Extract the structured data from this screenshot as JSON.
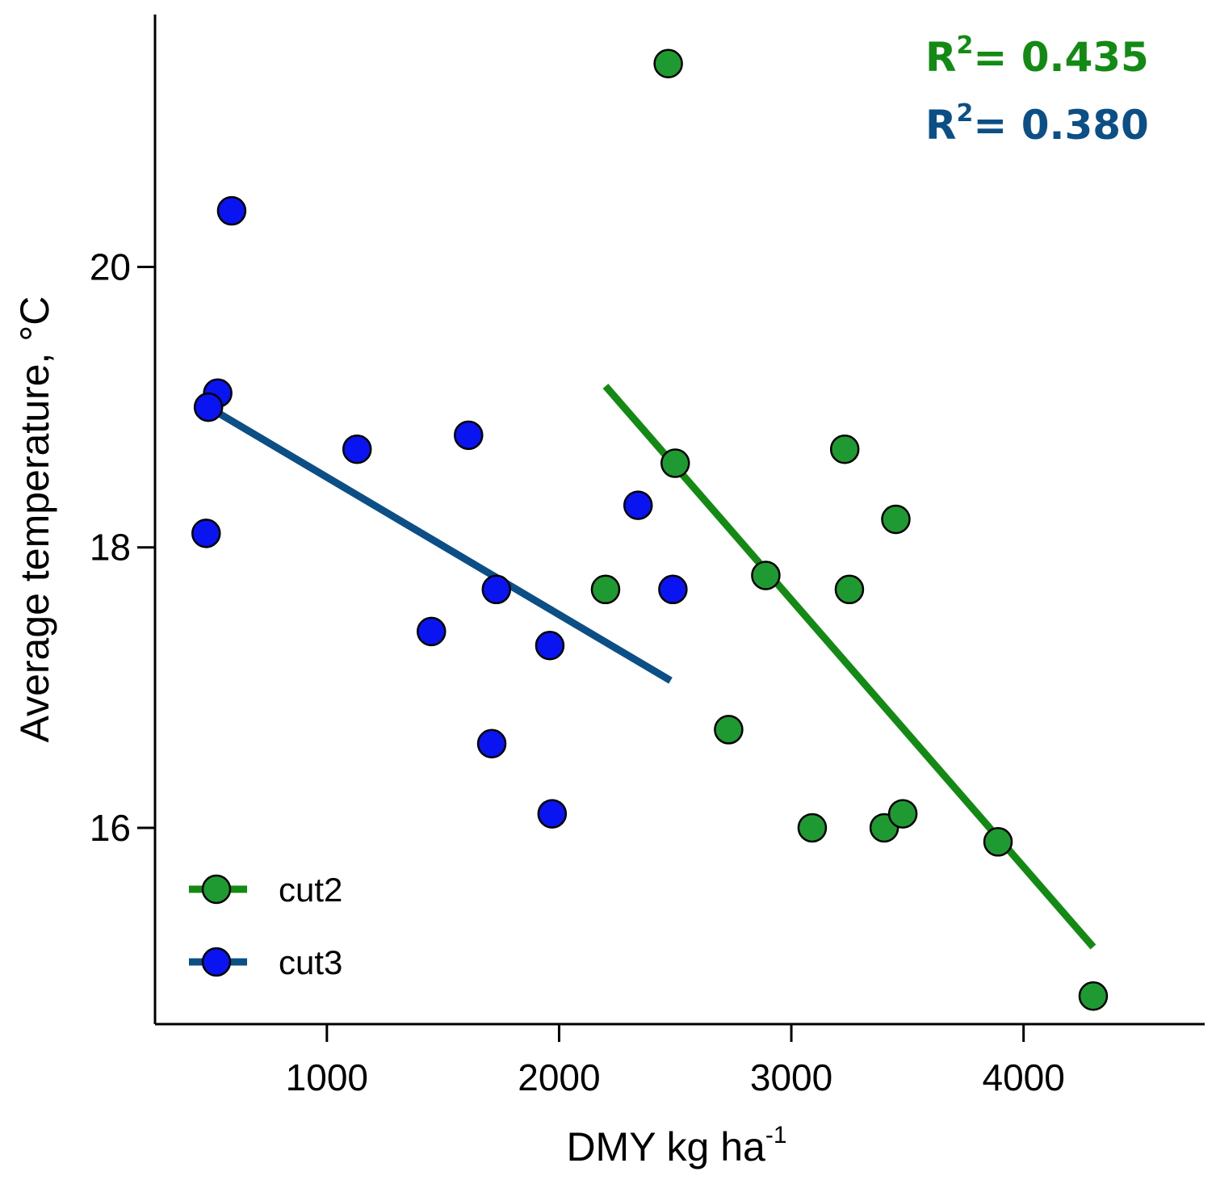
{
  "chart_data": {
    "type": "scatter",
    "title": "",
    "xlabel": "DMY kg ha",
    "xlabel_sup": "-1",
    "ylabel": "Average temperature, °C",
    "xlim": [
      260,
      4780
    ],
    "ylim": [
      14.6,
      21.8
    ],
    "x_ticks": [
      1000,
      2000,
      3000,
      4000
    ],
    "y_ticks": [
      16,
      18,
      20
    ],
    "grid": false,
    "legend_position": "bottom-left",
    "series": [
      {
        "name": "cut2",
        "color": "#1f9a33",
        "points": [
          [
            2470,
            21.45
          ],
          [
            2500,
            18.6
          ],
          [
            2200,
            17.7
          ],
          [
            2890,
            17.8
          ],
          [
            3230,
            18.7
          ],
          [
            3450,
            18.2
          ],
          [
            3250,
            17.7
          ],
          [
            2730,
            16.7
          ],
          [
            3090,
            16.0
          ],
          [
            3400,
            16.0
          ],
          [
            3480,
            16.1
          ],
          [
            3890,
            15.9
          ],
          [
            4300,
            14.8
          ]
        ],
        "fit": {
          "x": [
            2200,
            4300
          ],
          "y": [
            19.15,
            15.15
          ],
          "color": "#138a13",
          "r2_label": "R",
          "r2_sup": "2",
          "r2_value": "= 0.435"
        }
      },
      {
        "name": "cut3",
        "color": "#0a14f0",
        "points": [
          [
            590,
            20.4
          ],
          [
            530,
            19.1
          ],
          [
            490,
            19.0
          ],
          [
            480,
            18.1
          ],
          [
            1130,
            18.7
          ],
          [
            1610,
            18.8
          ],
          [
            1450,
            17.4
          ],
          [
            1730,
            17.7
          ],
          [
            2340,
            18.3
          ],
          [
            2490,
            17.7
          ],
          [
            1960,
            17.3
          ],
          [
            1710,
            16.6
          ],
          [
            1970,
            16.1
          ]
        ],
        "fit": {
          "x": [
            490,
            2480
          ],
          "y": [
            19.0,
            17.05
          ],
          "color": "#0b4f86",
          "r2_label": "R",
          "r2_sup": "2",
          "r2_value": "= 0.380"
        }
      }
    ]
  }
}
